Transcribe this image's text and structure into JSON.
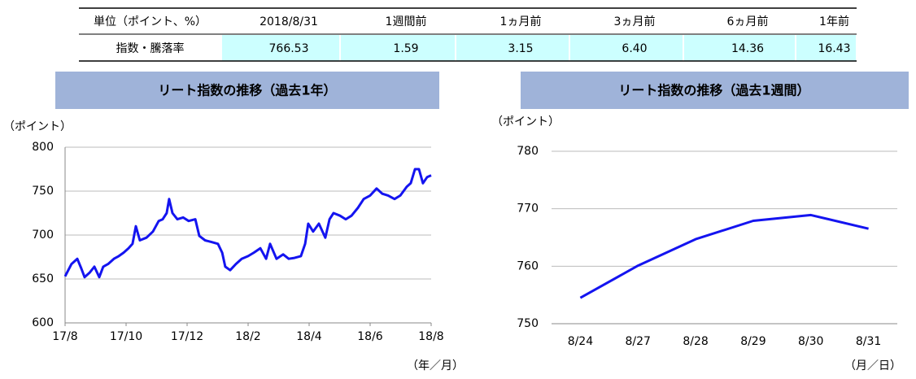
{
  "table": {
    "header": [
      "単位（ポイント、%）",
      "2018/8/31",
      "1週間前",
      "1ヵ月前",
      "3ヵ月前",
      "6ヵ月前",
      "1年前"
    ],
    "rows": [
      [
        "指数・騰落率",
        "766.53",
        "1.59",
        "3.15",
        "6.40",
        "14.36",
        "16.43"
      ]
    ]
  },
  "chart_data": [
    {
      "type": "line",
      "title": "リート指数の推移（過去1年）",
      "y_label": "（ポイント）",
      "x_label": "（年／月）",
      "color": "#1414f0",
      "grid": true,
      "x": [
        0,
        0.21,
        0.4,
        0.53,
        0.64,
        0.8,
        0.96,
        1.12,
        1.25,
        1.41,
        1.6,
        1.76,
        1.92,
        2.08,
        2.21,
        2.32,
        2.45,
        2.67,
        2.88,
        3.07,
        3.2,
        3.33,
        3.41,
        3.52,
        3.68,
        3.87,
        4.05,
        4.27,
        4.4,
        4.59,
        4.8,
        5.01,
        5.15,
        5.25,
        5.41,
        5.6,
        5.79,
        6.0,
        6.19,
        6.4,
        6.59,
        6.72,
        6.93,
        7.15,
        7.33,
        7.52,
        7.73,
        7.87,
        7.97,
        8.13,
        8.32,
        8.53,
        8.67,
        8.8,
        9.01,
        9.2,
        9.39,
        9.6,
        9.79,
        10.0,
        10.21,
        10.4,
        10.59,
        10.8,
        10.99,
        11.2,
        11.33,
        11.47,
        11.6,
        11.73,
        11.87,
        12.0
      ],
      "values": [
        653,
        667,
        673,
        662,
        652,
        657,
        664,
        652,
        664,
        667,
        673,
        676,
        680,
        685,
        690,
        710,
        694,
        697,
        704,
        716,
        718,
        725,
        741,
        725,
        718,
        720,
        716,
        718,
        699,
        694,
        692,
        690,
        680,
        664,
        660,
        667,
        673,
        676,
        680,
        685,
        673,
        690,
        673,
        678,
        673,
        674,
        676,
        690,
        713,
        704,
        713,
        697,
        718,
        725,
        722,
        718,
        722,
        731,
        741,
        745,
        753,
        747,
        745,
        741,
        745,
        755,
        759,
        775,
        775,
        759,
        766,
        768
      ],
      "xlim": [
        0,
        12
      ],
      "xticks": [
        {
          "value": 0,
          "label": "17/8"
        },
        {
          "value": 2,
          "label": "17/10"
        },
        {
          "value": 4,
          "label": "17/12"
        },
        {
          "value": 6,
          "label": "18/2"
        },
        {
          "value": 8,
          "label": "18/4"
        },
        {
          "value": 10,
          "label": "18/6"
        },
        {
          "value": 12,
          "label": "18/8"
        }
      ],
      "ylim": [
        600,
        800
      ],
      "yticks": [
        600,
        650,
        700,
        750,
        800
      ]
    },
    {
      "type": "line",
      "title": "リート指数の推移（過去1週間）",
      "y_label": "（ポイント）",
      "x_label": "（月／日）",
      "color": "#1414f0",
      "grid": true,
      "categories": [
        "8/24",
        "8/27",
        "8/28",
        "8/29",
        "8/30",
        "8/31"
      ],
      "values": [
        754.5,
        760.1,
        764.7,
        767.9,
        768.9,
        766.53
      ],
      "ylim": [
        750,
        780
      ],
      "yticks": [
        750,
        760,
        770,
        780
      ]
    }
  ]
}
